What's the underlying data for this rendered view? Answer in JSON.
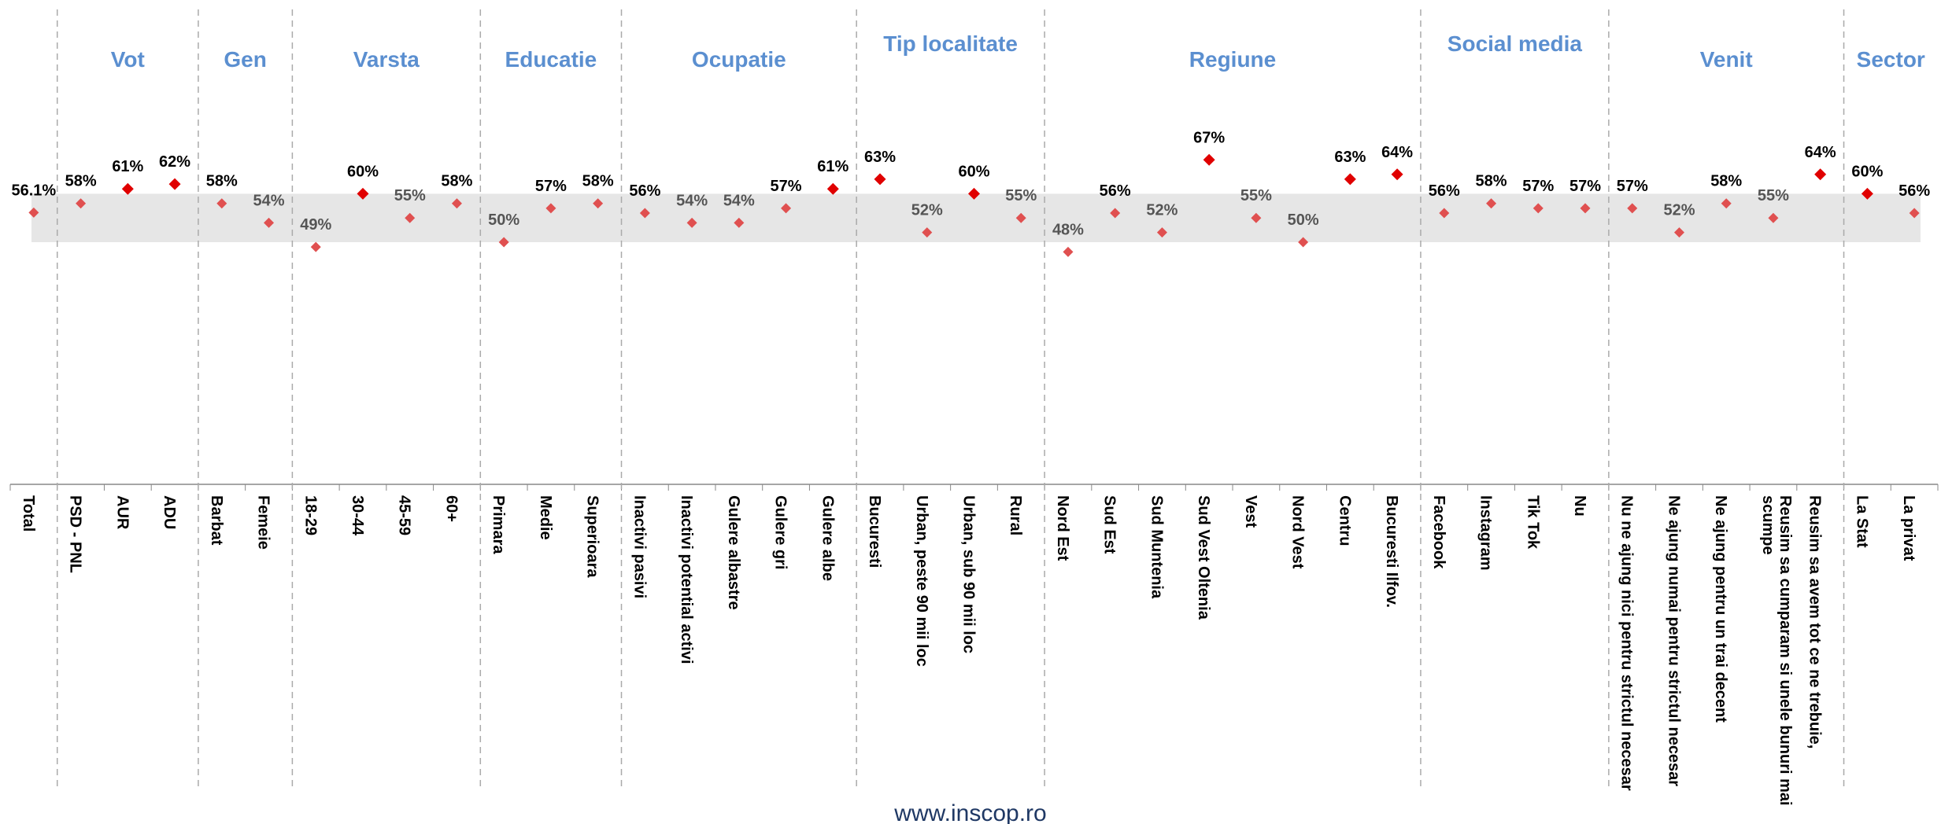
{
  "chart_data": {
    "type": "dot",
    "categories": [
      "Total",
      "PSD - PNL",
      "AUR",
      "ADU",
      "Barbat",
      "Femeie",
      "18-29",
      "30-44",
      "45-59",
      "60+",
      "Primara",
      "Medie",
      "Superioara",
      "Inactivi pasivi",
      "Inactivi potential activi",
      "Gulere albastre",
      "Gulere gri",
      "Gulere albe",
      "Bucuresti",
      "Urban, peste 90 mii loc",
      "Urban, sub 90 mii loc",
      "Rural",
      "Nord Est",
      "Sud Est",
      "Sud Muntenia",
      "Sud Vest Oltenia",
      "Vest",
      "Nord Vest",
      "Centru",
      "Bucuresti Ilfov.",
      "Facebook",
      "Instagram",
      "Tik Tok",
      "Nu",
      "Nu ne ajung nici pentru strictul necesar",
      "Ne ajung numai pentru strictul necesar",
      "Ne ajung pentru un trai decent",
      "Reusim sa cumparam si unele bunuri mai scumpe",
      "Reusim sa avem tot ce ne trebuie,",
      "La Stat",
      "La privat"
    ],
    "values": [
      56.1,
      58,
      61,
      62,
      58,
      54,
      49,
      60,
      55,
      58,
      50,
      57,
      58,
      56,
      54,
      54,
      57,
      61,
      63,
      52,
      60,
      55,
      48,
      56,
      52,
      67,
      55,
      50,
      63,
      64,
      56,
      58,
      57,
      57,
      57,
      52,
      58,
      55,
      64,
      60,
      56
    ],
    "value_labels": [
      "56.1%",
      "58%",
      "61%",
      "62%",
      "58%",
      "54%",
      "49%",
      "60%",
      "55%",
      "58%",
      "50%",
      "57%",
      "58%",
      "56%",
      "54%",
      "54%",
      "57%",
      "61%",
      "63%",
      "52%",
      "60%",
      "55%",
      "48%",
      "56%",
      "52%",
      "67%",
      "55%",
      "50%",
      "63%",
      "64%",
      "56%",
      "58%",
      "57%",
      "57%",
      "57%",
      "52%",
      "58%",
      "55%",
      "64%",
      "60%",
      "56%"
    ],
    "groups": [
      {
        "name": "Vot",
        "first": 1,
        "last": 3
      },
      {
        "name": "Gen",
        "first": 4,
        "last": 5
      },
      {
        "name": "Varsta",
        "first": 6,
        "last": 9
      },
      {
        "name": "Educatie",
        "first": 10,
        "last": 12
      },
      {
        "name": "Ocupatie",
        "first": 13,
        "last": 17
      },
      {
        "name": "Tip localitate",
        "first": 18,
        "last": 21
      },
      {
        "name": "Regiune",
        "first": 22,
        "last": 29
      },
      {
        "name": "Social media",
        "first": 30,
        "last": 33
      },
      {
        "name": "Venit",
        "first": 34,
        "last": 38
      },
      {
        "name": "Sector",
        "first": 39,
        "last": 40
      }
    ],
    "band": [
      50,
      60
    ],
    "color": "#e05050",
    "highlight_color": "#e00000",
    "highlight_from": 60,
    "ylim": [
      0,
      100
    ],
    "footer": "www.inscop.ro"
  }
}
